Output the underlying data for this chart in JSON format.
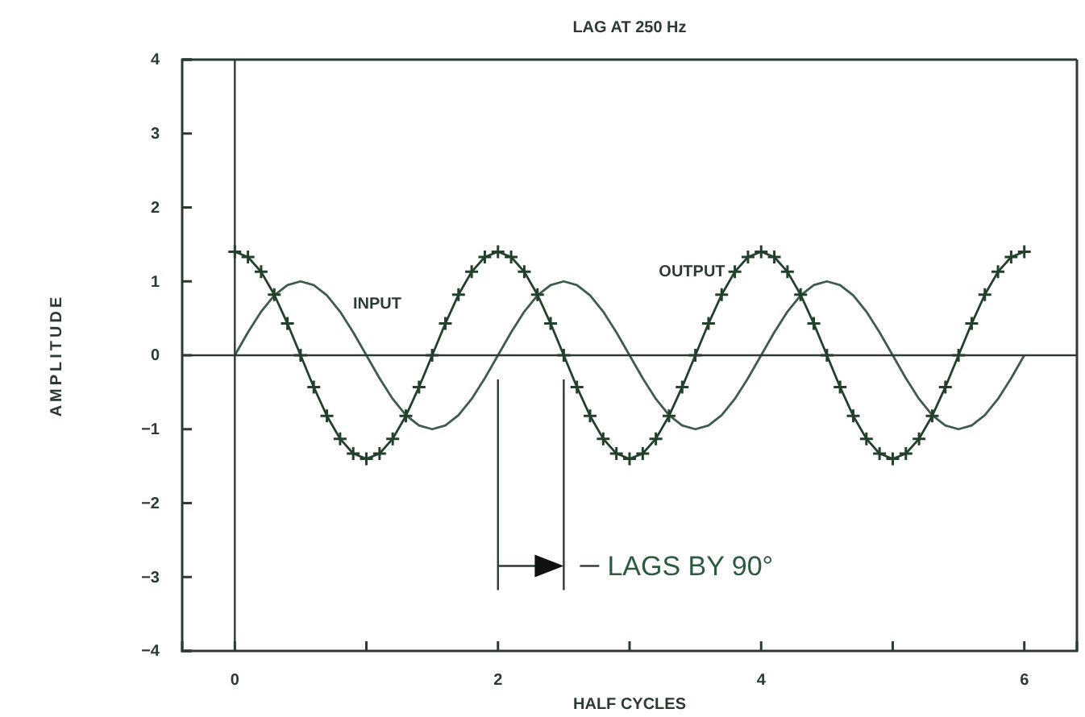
{
  "chart_data": {
    "type": "line",
    "title": "LAG AT 250 Hz",
    "xlabel": "HALF CYCLES",
    "ylabel": "AMPLITUDE",
    "x": [
      0,
      0.1,
      0.2,
      0.3,
      0.4,
      0.5,
      0.6,
      0.7,
      0.8,
      0.9,
      1,
      1.1,
      1.2,
      1.3,
      1.4,
      1.5,
      1.6,
      1.7,
      1.8,
      1.9,
      2,
      2.1,
      2.2,
      2.3,
      2.4,
      2.5,
      2.6,
      2.7,
      2.8,
      2.9,
      3,
      3.1,
      3.2,
      3.3,
      3.4,
      3.5,
      3.6,
      3.7,
      3.8,
      3.9,
      4,
      4.1,
      4.2,
      4.3,
      4.4,
      4.5,
      4.6,
      4.7,
      4.8,
      4.9,
      5,
      5.1,
      5.2,
      5.3,
      5.4,
      5.5,
      5.6,
      5.7,
      5.8,
      5.9,
      6
    ],
    "series": [
      {
        "name": "INPUT",
        "color": "#3f5c4a",
        "marker": "none",
        "values": [
          0,
          0.31,
          0.59,
          0.81,
          0.95,
          1,
          0.95,
          0.81,
          0.59,
          0.31,
          0,
          -0.31,
          -0.59,
          -0.81,
          -0.95,
          -1,
          -0.95,
          -0.81,
          -0.59,
          -0.31,
          0,
          0.31,
          0.59,
          0.81,
          0.95,
          1,
          0.95,
          0.81,
          0.59,
          0.31,
          0,
          -0.31,
          -0.59,
          -0.81,
          -0.95,
          -1,
          -0.95,
          -0.81,
          -0.59,
          -0.31,
          0,
          0.31,
          0.59,
          0.81,
          0.95,
          1,
          0.95,
          0.81,
          0.59,
          0.31,
          0,
          -0.31,
          -0.59,
          -0.81,
          -0.95,
          -1,
          -0.95,
          -0.81,
          -0.59,
          -0.31,
          0
        ]
      },
      {
        "name": "OUTPUT",
        "color": "#23402c",
        "marker": "cross",
        "values": [
          1.4,
          1.33,
          1.13,
          0.82,
          0.43,
          0,
          -0.43,
          -0.82,
          -1.13,
          -1.33,
          -1.4,
          -1.33,
          -1.13,
          -0.82,
          -0.43,
          0,
          0.43,
          0.82,
          1.13,
          1.33,
          1.4,
          1.33,
          1.13,
          0.82,
          0.43,
          0,
          -0.43,
          -0.82,
          -1.13,
          -1.33,
          -1.4,
          -1.33,
          -1.13,
          -0.82,
          -0.43,
          0,
          0.43,
          0.82,
          1.13,
          1.33,
          1.4,
          1.33,
          1.13,
          0.82,
          0.43,
          0,
          -0.43,
          -0.82,
          -1.13,
          -1.33,
          -1.4,
          -1.33,
          -1.13,
          -0.82,
          -0.43,
          0,
          0.43,
          0.82,
          1.13,
          1.33,
          1.4
        ]
      }
    ],
    "xlim": [
      -0.4,
      6.4
    ],
    "ylim": [
      -4,
      4
    ],
    "xticks": [
      0,
      {
        "value": 1,
        "label": null
      },
      2,
      {
        "value": 3,
        "label": null
      },
      4,
      {
        "value": 5,
        "label": null
      },
      6
    ],
    "yticks": [
      -4,
      -3,
      -2,
      -1,
      0,
      1,
      2,
      3,
      4
    ],
    "ref_lines": [
      {
        "axis": "x",
        "value": 0
      },
      {
        "axis": "y",
        "value": 0
      },
      {
        "axis": "x",
        "value": 2
      },
      {
        "axis": "x",
        "value": 2.5
      }
    ],
    "annotations": [
      {
        "text": "LAGS BY 90°",
        "x": 2.5,
        "y": -2.85
      }
    ],
    "line_style": "solid"
  }
}
